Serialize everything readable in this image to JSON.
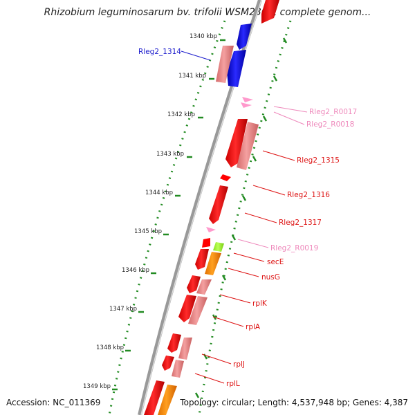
{
  "title": "Rhizobium leguminosarum bv. trifolii WSM2304, complete genom...",
  "footer": {
    "accession": "Accession: NC_011369",
    "summary": "Topology: circular; Length: 4,537,948 bp; Genes: 4,387"
  },
  "kbp_ticks": [
    "1340 kbp",
    "1341 kbp",
    "1342 kbp",
    "1343 kbp",
    "1344 kbp",
    "1345 kbp",
    "1346 kbp",
    "1347 kbp",
    "1348 kbp",
    "1349 kbp"
  ],
  "gene_labels": [
    {
      "text": "Rleg2_1314",
      "color": "#1a1acc"
    },
    {
      "text": "Rleg2_R0017",
      "color": "#ee88bb"
    },
    {
      "text": "Rleg2_R0018",
      "color": "#ee88bb"
    },
    {
      "text": "Rleg2_1315",
      "color": "#dd1111"
    },
    {
      "text": "Rleg2_1316",
      "color": "#dd1111"
    },
    {
      "text": "Rleg2_1317",
      "color": "#dd1111"
    },
    {
      "text": "Rleg2_R0019",
      "color": "#ee88bb"
    },
    {
      "text": "secE",
      "color": "#dd1111"
    },
    {
      "text": "nusG",
      "color": "#dd1111"
    },
    {
      "text": "rplK",
      "color": "#dd1111"
    },
    {
      "text": "rplA",
      "color": "#dd1111"
    },
    {
      "text": "rplJ",
      "color": "#dd1111"
    },
    {
      "text": "rplL",
      "color": "#dd1111"
    }
  ],
  "colors": {
    "cds_forward": "#ff0000",
    "cds_blue": "#0000ee",
    "gene_pale": "#f08080",
    "rna": "#ff99cc",
    "orange": "#ff8c00",
    "lime": "#99ff33",
    "backbone": "#999999",
    "ticks": "#228b22"
  }
}
